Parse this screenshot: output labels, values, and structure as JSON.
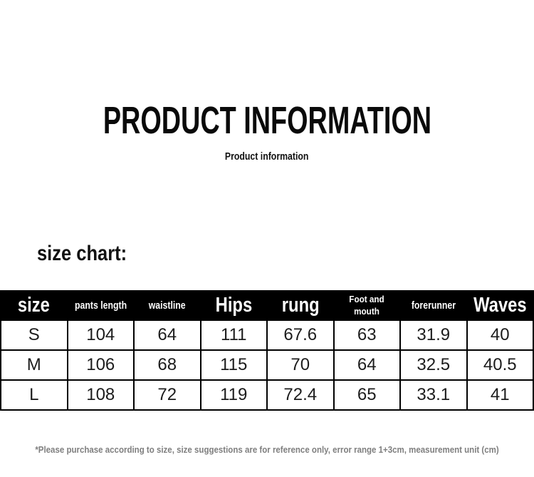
{
  "page": {
    "title": "PRODUCT INFORMATION",
    "subtitle": "Product information",
    "section_heading": "size chart:",
    "footnote": "*Please purchase according to size, size suggestions are for reference only, error range 1+3cm, measurement unit (cm)"
  },
  "size_chart_table": {
    "headers": [
      "size",
      "pants length",
      "waistline",
      "Hips",
      "rung",
      "Foot and mouth",
      "forerunner",
      "Waves"
    ],
    "rows": [
      [
        "S",
        "104",
        "64",
        "111",
        "67.6",
        "63",
        "31.9",
        "40"
      ],
      [
        "M",
        "106",
        "68",
        "115",
        "70",
        "64",
        "32.5",
        "40.5"
      ],
      [
        "L",
        "108",
        "72",
        "119",
        "72.4",
        "65",
        "33.1",
        "41"
      ]
    ]
  },
  "colors": {
    "header_background": "#000000",
    "header_text": "#ffffff",
    "body_text": "#1c1c1c",
    "border": "#000000",
    "footnote_text": "#7f7f7f",
    "page_background": "#ffffff"
  }
}
